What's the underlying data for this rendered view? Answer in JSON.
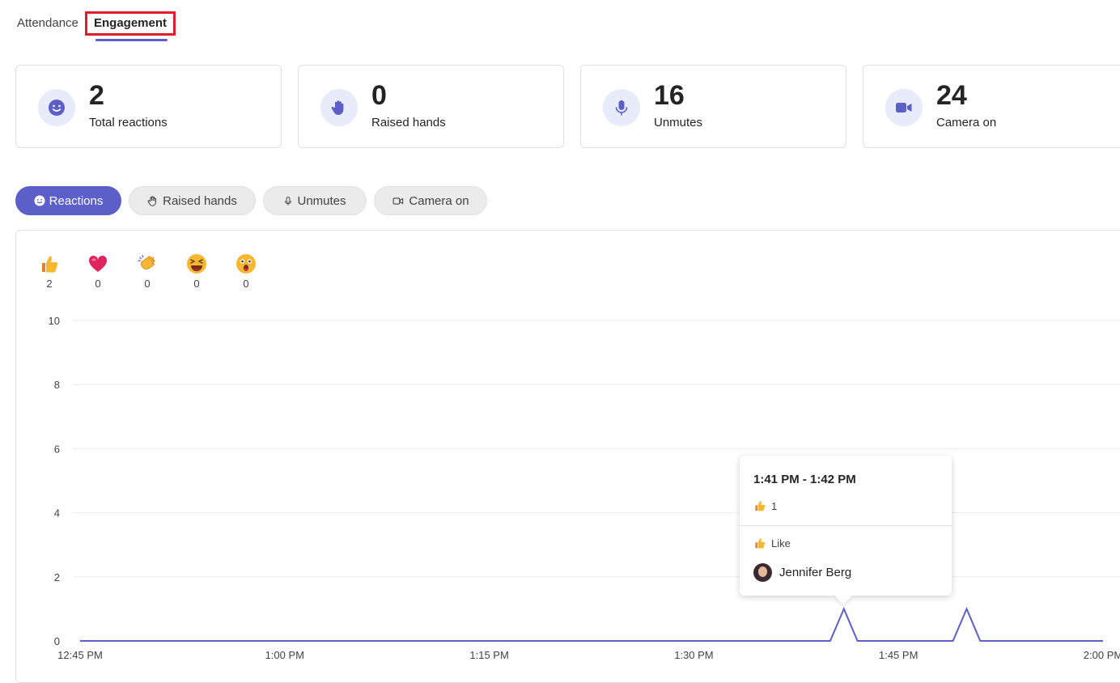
{
  "tabs": {
    "attendance": "Attendance",
    "engagement": "Engagement"
  },
  "stats": [
    {
      "value": "2",
      "label": "Total reactions",
      "icon": "smiley-icon"
    },
    {
      "value": "0",
      "label": "Raised hands",
      "icon": "hand-icon"
    },
    {
      "value": "16",
      "label": "Unmutes",
      "icon": "microphone-icon"
    },
    {
      "value": "24",
      "label": "Camera on",
      "icon": "video-camera-icon"
    }
  ],
  "filters": [
    {
      "label": "Reactions",
      "icon": "smiley-icon",
      "active": true
    },
    {
      "label": "Raised hands",
      "icon": "hand-icon",
      "active": false
    },
    {
      "label": "Unmutes",
      "icon": "microphone-icon",
      "active": false
    },
    {
      "label": "Camera on",
      "icon": "video-camera-icon",
      "active": false
    }
  ],
  "reactions": [
    {
      "emoji": "thumbs-up-icon",
      "count": "2"
    },
    {
      "emoji": "heart-icon",
      "count": "0"
    },
    {
      "emoji": "clapping-hands-icon",
      "count": "0"
    },
    {
      "emoji": "laughing-face-icon",
      "count": "0"
    },
    {
      "emoji": "surprised-face-icon",
      "count": "0"
    }
  ],
  "colors": {
    "accent": "#5b5fc7",
    "accent_light": "#e8ebfa",
    "highlight_border": "#e11d27"
  },
  "chart_data": {
    "type": "line",
    "ylim": [
      0,
      10
    ],
    "y_ticks": [
      "0",
      "2",
      "4",
      "6",
      "8",
      "10"
    ],
    "x_ticks": [
      "12:45 PM",
      "1:00 PM",
      "1:15 PM",
      "1:30 PM",
      "1:45 PM",
      "2:00 PM"
    ],
    "x_range_minutes": [
      "12:45 PM",
      "2:00 PM"
    ],
    "series": [
      {
        "points": [
          {
            "x": "12:45 PM",
            "y": 0
          },
          {
            "x": "1:40 PM",
            "y": 0
          },
          {
            "x": "1:41 PM",
            "y": 1
          },
          {
            "x": "1:42 PM",
            "y": 0
          },
          {
            "x": "1:49 PM",
            "y": 0
          },
          {
            "x": "1:50 PM",
            "y": 1
          },
          {
            "x": "1:51 PM",
            "y": 0
          },
          {
            "x": "2:00 PM",
            "y": 0
          }
        ]
      }
    ],
    "grid": true
  },
  "tooltip": {
    "time_range": "1:41 PM - 1:42 PM",
    "count": "1",
    "reaction_type": "Like",
    "user_name": "Jennifer Berg"
  }
}
